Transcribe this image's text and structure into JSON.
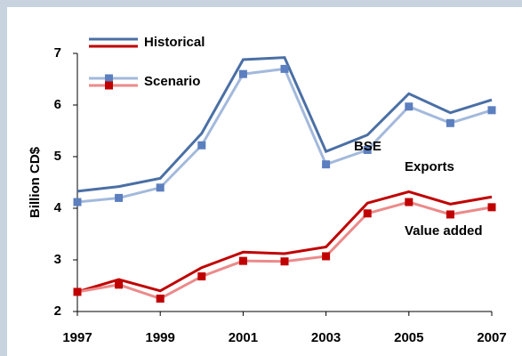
{
  "chart_data": {
    "type": "line",
    "y_label": "Billion CD$",
    "annotations": [
      "BSE",
      "Exports",
      "Value added"
    ],
    "x": [
      1997,
      1998,
      1999,
      2000,
      2001,
      2002,
      2003,
      2004,
      2005,
      2006,
      2007
    ],
    "xlim": [
      1997,
      2007
    ],
    "xticks": [
      1997,
      1999,
      2001,
      2003,
      2005,
      2007
    ],
    "ylim": [
      2,
      7
    ],
    "yticks": [
      2,
      3,
      4,
      5,
      6,
      7
    ],
    "grid": false,
    "legend": "top-left",
    "series": [
      {
        "name": "Historical",
        "color": "#4a6fa5",
        "values": [
          4.33,
          4.42,
          4.58,
          5.45,
          6.88,
          6.92,
          5.1,
          5.42,
          6.22,
          5.85,
          6.1
        ]
      },
      {
        "name": "Scenario",
        "color": "#a3b9dc",
        "marker_color": "#5b7fbf",
        "values": [
          4.12,
          4.2,
          4.4,
          5.22,
          6.6,
          6.7,
          4.85,
          5.13,
          5.97,
          5.65,
          5.9
        ]
      },
      {
        "name": "Historical",
        "color": "#c00000",
        "values": [
          2.38,
          2.62,
          2.4,
          2.85,
          3.15,
          3.12,
          3.25,
          4.1,
          4.32,
          4.08,
          4.22
        ]
      },
      {
        "name": "Scenario",
        "color": "#ec8a8a",
        "marker_color": "#c00000",
        "values": [
          2.38,
          2.52,
          2.25,
          2.68,
          2.98,
          2.97,
          3.07,
          3.9,
          4.12,
          3.88,
          4.02
        ]
      }
    ]
  }
}
